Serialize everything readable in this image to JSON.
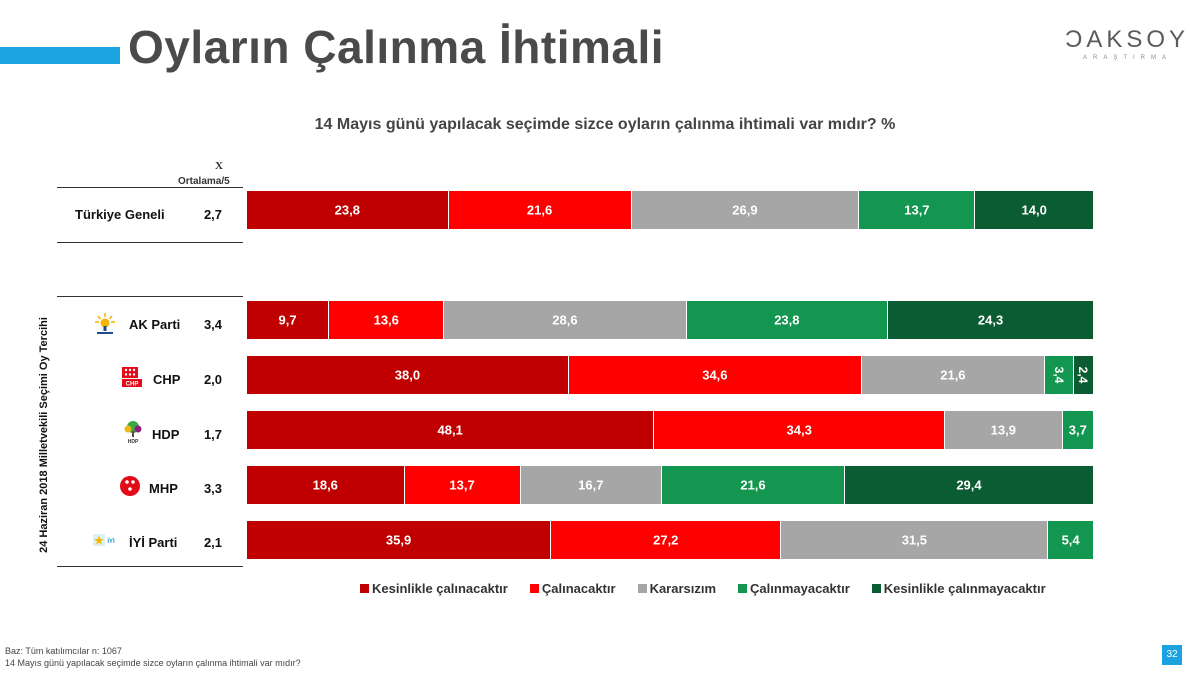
{
  "header": {
    "title": "Oyların Çalınma İhtimali",
    "logo_main": "ƆAKSOY",
    "logo_sub": "ARAŞTIRMA"
  },
  "colors": {
    "accent": "#1aa3e0",
    "kesinlikle_calinacak": "#c00000",
    "calinacak": "#ff0000",
    "kararsiz": "#a6a6a6",
    "calinmayacak": "#139750",
    "kesinlikle_calinmayacak": "#0b5c33"
  },
  "table_head": {
    "x": "X",
    "avg": "Ortalama/5"
  },
  "side_label": "24 Haziran 2018 Milletvekili Seçimi Oy Tercihi",
  "legend": [
    {
      "label": "Kesinlikle çalınacaktır",
      "color": "#c00000"
    },
    {
      "label": "Çalınacaktır",
      "color": "#ff0000"
    },
    {
      "label": "Kararsızım",
      "color": "#a6a6a6"
    },
    {
      "label": "Çalınmayacaktır",
      "color": "#139750"
    },
    {
      "label": "Kesinlikle çalınmayacaktır",
      "color": "#0b5c33"
    }
  ],
  "chart_data": {
    "type": "bar",
    "orientation": "horizontal",
    "stacked": true,
    "percent": true,
    "title": "14 Mayıs günü yapılacak seçimde sizce oyların çalınma ihtimali var mıdır? %",
    "categories": [
      "Türkiye Geneli",
      "AK Parti",
      "CHP",
      "HDP",
      "MHP",
      "İYİ Parti"
    ],
    "averages": [
      "2,7",
      "3,4",
      "2,0",
      "1,7",
      "3,3",
      "2,1"
    ],
    "series": [
      {
        "name": "Kesinlikle çalınacaktır",
        "color": "#c00000",
        "values": [
          23.8,
          9.7,
          38.0,
          48.1,
          18.6,
          35.9
        ]
      },
      {
        "name": "Çalınacaktır",
        "color": "#ff0000",
        "values": [
          21.6,
          13.6,
          34.6,
          34.3,
          13.7,
          27.2
        ]
      },
      {
        "name": "Kararsızım",
        "color": "#a6a6a6",
        "values": [
          26.9,
          28.6,
          21.6,
          13.9,
          16.7,
          31.5
        ]
      },
      {
        "name": "Çalınmayacaktır",
        "color": "#139750",
        "values": [
          13.7,
          23.8,
          3.4,
          3.7,
          21.6,
          5.4
        ]
      },
      {
        "name": "Kesinlikle çalınmayacaktır",
        "color": "#0b5c33",
        "values": [
          14.0,
          24.3,
          2.4,
          0,
          29.4,
          0
        ]
      }
    ],
    "legend_position": "bottom"
  },
  "footer": {
    "base": "Baz: Tüm katılımcılar n: 1067",
    "question": "14 Mayıs günü yapılacak seçimde sizce oyların çalınma ihtimali var mıdır?",
    "page": "32"
  }
}
